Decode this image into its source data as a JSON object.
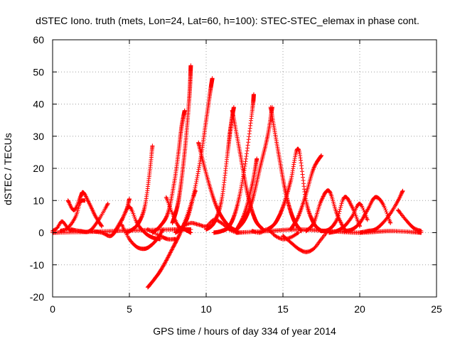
{
  "chart_data": {
    "type": "scatter",
    "title": "dSTEC Iono. truth (mets, Lon=24, Lat=60, h=100): STEC-STEC_elemax in phase cont.",
    "xlabel": "GPS time / hours of day 334 of year 2014",
    "ylabel": "dSTEC  / TECUs",
    "xlim": [
      0,
      25
    ],
    "ylim": [
      -20,
      60
    ],
    "xticks": [
      0,
      5,
      10,
      15,
      20,
      25
    ],
    "yticks": [
      -20,
      -10,
      0,
      10,
      20,
      30,
      40,
      50,
      60
    ],
    "grid": true,
    "marker": "plus",
    "color": "#ff0000",
    "series": [
      {
        "x": [
          0.0,
          0.3,
          0.6,
          0.9,
          1.2
        ],
        "y": [
          0.5,
          1.5,
          3.5,
          2.0,
          0.5
        ]
      },
      {
        "x": [
          0.5,
          1.0,
          1.5,
          1.8,
          2.1
        ],
        "y": [
          0.5,
          1.5,
          5.0,
          9.5,
          10.0
        ]
      },
      {
        "x": [
          1.0,
          1.4,
          1.8,
          2.0,
          2.4,
          2.8,
          3.2
        ],
        "y": [
          10.0,
          7.0,
          11.0,
          12.5,
          9.0,
          5.0,
          2.0
        ]
      },
      {
        "x": [
          1.2,
          1.8,
          2.4,
          3.0,
          3.6
        ],
        "y": [
          1.0,
          0.5,
          0.5,
          4.0,
          9.0
        ]
      },
      {
        "x": [
          0.0,
          2.0,
          4.0,
          6.0,
          8.0,
          9.0
        ],
        "y": [
          0.0,
          0.2,
          0.5,
          0.8,
          1.0,
          1.0
        ]
      },
      {
        "x": [
          2.5,
          3.2,
          3.8,
          4.3,
          4.8,
          5.0
        ],
        "y": [
          0.5,
          0.0,
          -1.0,
          2.0,
          7.0,
          10.5
        ]
      },
      {
        "x": [
          4.0,
          4.5,
          5.0,
          5.5,
          6.0,
          6.5,
          7.0
        ],
        "y": [
          0.0,
          4.0,
          8.0,
          3.0,
          0.0,
          -1.5,
          -2.0
        ]
      },
      {
        "x": [
          4.5,
          5.0,
          5.5,
          6.0,
          6.4,
          6.8,
          7.2
        ],
        "y": [
          2.5,
          -2.0,
          -4.5,
          -5.0,
          -4.0,
          -2.0,
          1.0
        ]
      },
      {
        "x": [
          4.8,
          5.2,
          5.6,
          6.0,
          6.3,
          6.5
        ],
        "y": [
          0.0,
          1.0,
          3.0,
          8.0,
          18.0,
          27.0
        ]
      },
      {
        "x": [
          6.2,
          7.0,
          7.8,
          8.5,
          9.3
        ],
        "y": [
          -17.0,
          -12.0,
          -5.0,
          2.0,
          13.0
        ]
      },
      {
        "x": [
          6.2,
          7.0,
          7.5,
          8.0
        ],
        "y": [
          1.0,
          -1.0,
          -2.0,
          -2.0
        ]
      },
      {
        "x": [
          6.5,
          7.0,
          7.5,
          7.9,
          8.2,
          8.4,
          8.6
        ],
        "y": [
          0.0,
          2.0,
          6.0,
          15.0,
          25.0,
          33.0,
          38.0
        ]
      },
      {
        "x": [
          7.4,
          7.8,
          8.2,
          8.6,
          9.0
        ],
        "y": [
          11.0,
          6.0,
          2.0,
          1.0,
          0.0
        ]
      },
      {
        "x": [
          7.8,
          8.2,
          8.6,
          8.9,
          9.0
        ],
        "y": [
          3.0,
          10.0,
          25.0,
          42.0,
          52.0
        ]
      },
      {
        "x": [
          8.0,
          8.5,
          9.0,
          9.6,
          10.0,
          10.3,
          10.4
        ],
        "y": [
          0.0,
          2.0,
          8.0,
          22.0,
          35.0,
          45.0,
          48.0
        ]
      },
      {
        "x": [
          8.5,
          9.0,
          9.5,
          10.0,
          10.5,
          11.0,
          11.5,
          12.0
        ],
        "y": [
          2.0,
          3.0,
          2.5,
          2.0,
          4.0,
          3.0,
          1.0,
          0.0
        ]
      },
      {
        "x": [
          9.5,
          9.8,
          10.2,
          10.6,
          11.0,
          11.5,
          12.0
        ],
        "y": [
          28.0,
          22.0,
          15.0,
          9.0,
          5.0,
          2.0,
          0.5
        ]
      },
      {
        "x": [
          10.0,
          10.5,
          11.0,
          11.4,
          11.6,
          11.8
        ],
        "y": [
          1.0,
          3.0,
          10.0,
          25.0,
          33.0,
          39.0
        ]
      },
      {
        "x": [
          11.7,
          12.2,
          12.7,
          13.2,
          13.7
        ],
        "y": [
          38.0,
          25.0,
          12.0,
          4.0,
          1.0
        ]
      },
      {
        "x": [
          10.5,
          11.0,
          11.5,
          12.0,
          12.5,
          13.0,
          13.1
        ],
        "y": [
          0.0,
          0.5,
          2.0,
          8.0,
          20.0,
          38.0,
          43.0
        ]
      },
      {
        "x": [
          12.0,
          12.5,
          13.0,
          13.5,
          14.0,
          14.3
        ],
        "y": [
          1.0,
          4.0,
          10.0,
          20.0,
          30.0,
          39.0
        ]
      },
      {
        "x": [
          14.2,
          14.7,
          15.2,
          15.7,
          16.2
        ],
        "y": [
          39.0,
          25.0,
          12.0,
          4.0,
          0.5
        ]
      },
      {
        "x": [
          12.0,
          12.5,
          13.0,
          13.3
        ],
        "y": [
          1.0,
          6.0,
          15.0,
          23.0
        ]
      },
      {
        "x": [
          14.0,
          14.5,
          15.0,
          15.5,
          16.0,
          16.5,
          17.0,
          17.5
        ],
        "y": [
          1.0,
          3.0,
          8.0,
          16.0,
          26.0,
          10.0,
          3.0,
          0.5
        ]
      },
      {
        "x": [
          13.0,
          13.5,
          14.0,
          14.5,
          15.0,
          15.5,
          16.0
        ],
        "y": [
          0.5,
          0.0,
          1.0,
          -1.0,
          -2.0,
          -1.5,
          0.0
        ]
      },
      {
        "x": [
          15.0,
          15.5,
          16.0,
          16.5,
          17.0,
          17.5,
          18.0
        ],
        "y": [
          -1.0,
          -3.0,
          -5.0,
          -6.0,
          -5.0,
          -2.0,
          1.0
        ]
      },
      {
        "x": [
          15.5,
          16.0,
          16.5,
          17.0,
          17.5
        ],
        "y": [
          1.0,
          5.0,
          12.0,
          20.0,
          24.0
        ]
      },
      {
        "x": [
          16.5,
          17.0,
          17.5,
          18.0,
          18.5,
          19.0
        ],
        "y": [
          0.5,
          3.0,
          10.0,
          13.0,
          6.0,
          1.0
        ]
      },
      {
        "x": [
          17.5,
          18.0,
          18.5,
          19.0,
          19.5,
          20.0
        ],
        "y": [
          0.5,
          1.0,
          4.0,
          11.0,
          8.0,
          2.0
        ]
      },
      {
        "x": [
          18.0,
          18.5,
          19.0,
          19.5,
          20.0,
          20.5
        ],
        "y": [
          0.0,
          0.5,
          2.0,
          5.0,
          9.0,
          4.0
        ]
      },
      {
        "x": [
          19.0,
          19.5,
          20.0,
          20.5,
          21.0,
          21.5,
          22.0
        ],
        "y": [
          0.5,
          1.0,
          3.0,
          7.0,
          11.0,
          9.0,
          3.0
        ]
      },
      {
        "x": [
          20.0,
          20.5,
          21.0,
          21.5,
          22.0,
          22.5,
          22.8
        ],
        "y": [
          0.0,
          0.5,
          1.0,
          3.0,
          6.0,
          10.0,
          13.0
        ]
      },
      {
        "x": [
          22.5,
          23.0,
          23.5,
          24.0
        ],
        "y": [
          7.0,
          4.0,
          1.5,
          0.5
        ]
      },
      {
        "x": [
          12.0,
          14.0,
          16.0,
          18.0,
          20.0,
          22.0,
          24.0
        ],
        "y": [
          0.0,
          0.5,
          1.0,
          0.5,
          0.0,
          0.5,
          0.0
        ]
      }
    ]
  }
}
